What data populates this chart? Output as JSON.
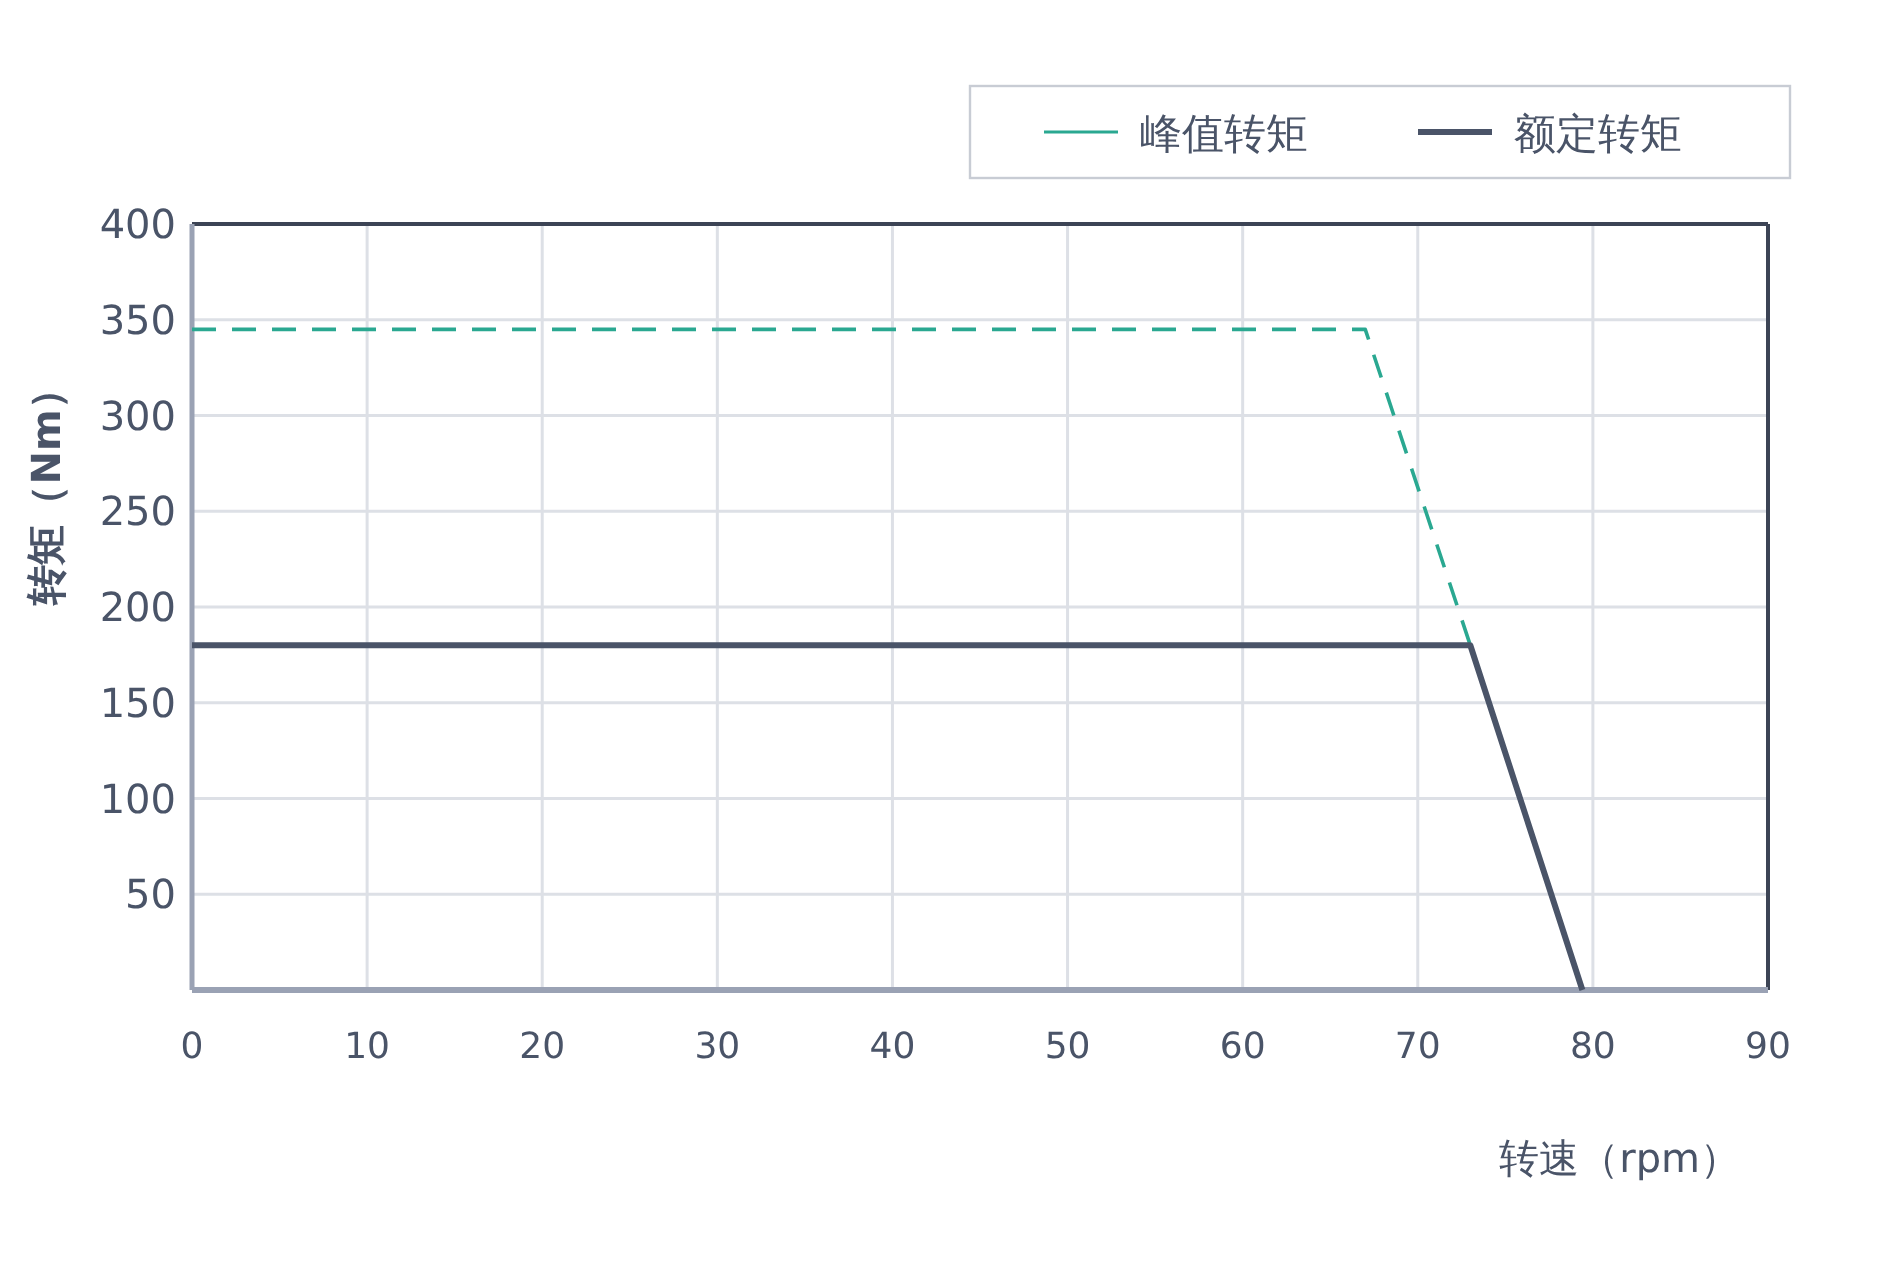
{
  "chart_data": {
    "type": "line",
    "xlabel": "转速（rpm）",
    "ylabel": "转矩（Nm）",
    "xlim": [
      0,
      90
    ],
    "xticks": [
      0,
      10,
      20,
      30,
      40,
      50,
      60,
      70,
      80,
      90
    ],
    "ylim": [
      0,
      400
    ],
    "yticks": [
      50,
      100,
      150,
      200,
      250,
      300,
      350,
      400
    ],
    "grid": true,
    "legend": "top right",
    "series": [
      {
        "name": "峰值转矩",
        "color": "#2aa891",
        "line_style": "dashed",
        "x": [
          0,
          67,
          73
        ],
        "values": [
          345,
          345,
          180
        ]
      },
      {
        "name": "额定转矩",
        "color": "#4a5468",
        "line_style": "solid",
        "x": [
          0,
          73,
          79.4
        ],
        "values": [
          180,
          180,
          0
        ]
      }
    ]
  }
}
